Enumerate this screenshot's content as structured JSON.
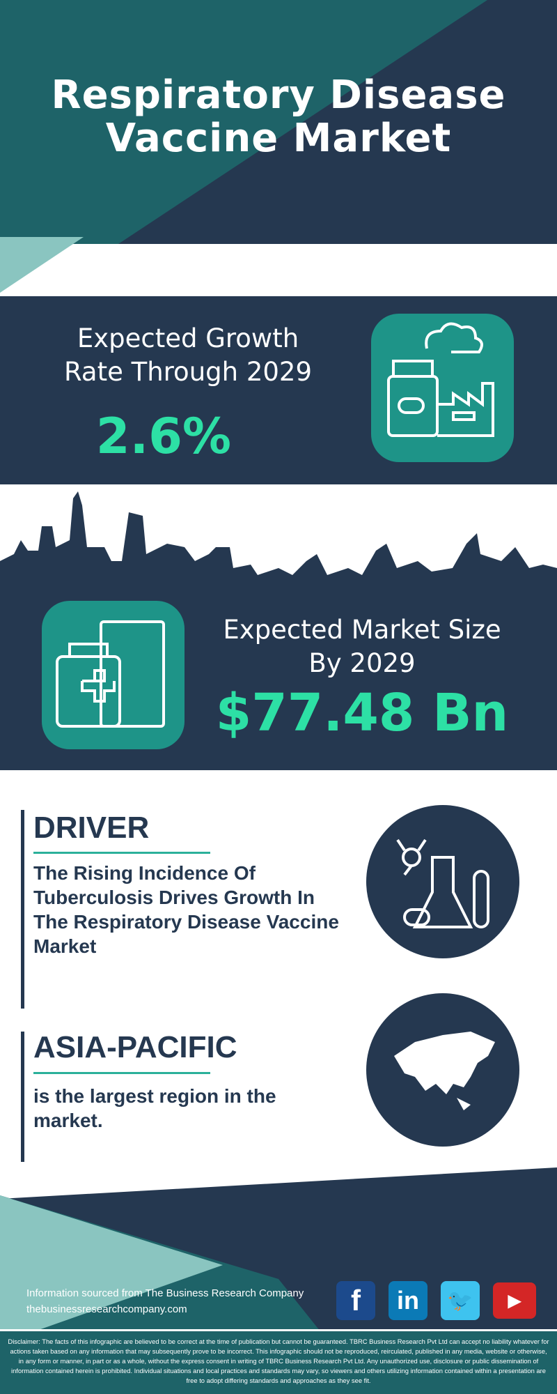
{
  "header": {
    "title_line1": "Respiratory Disease",
    "title_line2": "Vaccine Market"
  },
  "growth": {
    "label_line1": "Expected Growth",
    "label_line2": "Rate Through 2029",
    "value": "2.6%"
  },
  "market": {
    "label_line1": "Expected Market Size",
    "label_line2": "By 2029",
    "value": "$77.48 Bn"
  },
  "driver": {
    "heading": "DRIVER",
    "text": "The Rising Incidence Of Tuberculosis Drives Growth In The Respiratory Disease Vaccine Market"
  },
  "region": {
    "heading": "ASIA-PACIFIC",
    "text": "is the largest region in the market."
  },
  "footer": {
    "source": "Information sourced from The Business Research Company",
    "website": "thebusinessresearchcompany.com",
    "social": [
      "facebook",
      "linkedin",
      "twitter",
      "youtube"
    ]
  },
  "disclaimer": "Disclaimer: The facts of this infographic are believed to be correct at the time of publication but cannot be guaranteed. TBRC Business Research Pvt Ltd can accept no liability whatever for actions taken based on any information that may subsequently prove to be incorrect. This infographic should not be reproduced, reirculated, published in any media, website or otherwise, in any form or manner, in part or as a whole, without the express consent in writing of TBRC Business Research Pvt Ltd. Any unauthorized use, disclosure or public dissemination of information contained herein is prohibited. Individual situations and local practices and standards may vary, so viewers and others utilizing information contained within a presentation are free to adopt differing standards and approaches as they see fit.",
  "colors": {
    "navy": "#253850",
    "teal": "#1e6368",
    "accent": "#2de0a5",
    "icon_bg": "#1e9488",
    "light_teal": "#8ac5c0"
  }
}
